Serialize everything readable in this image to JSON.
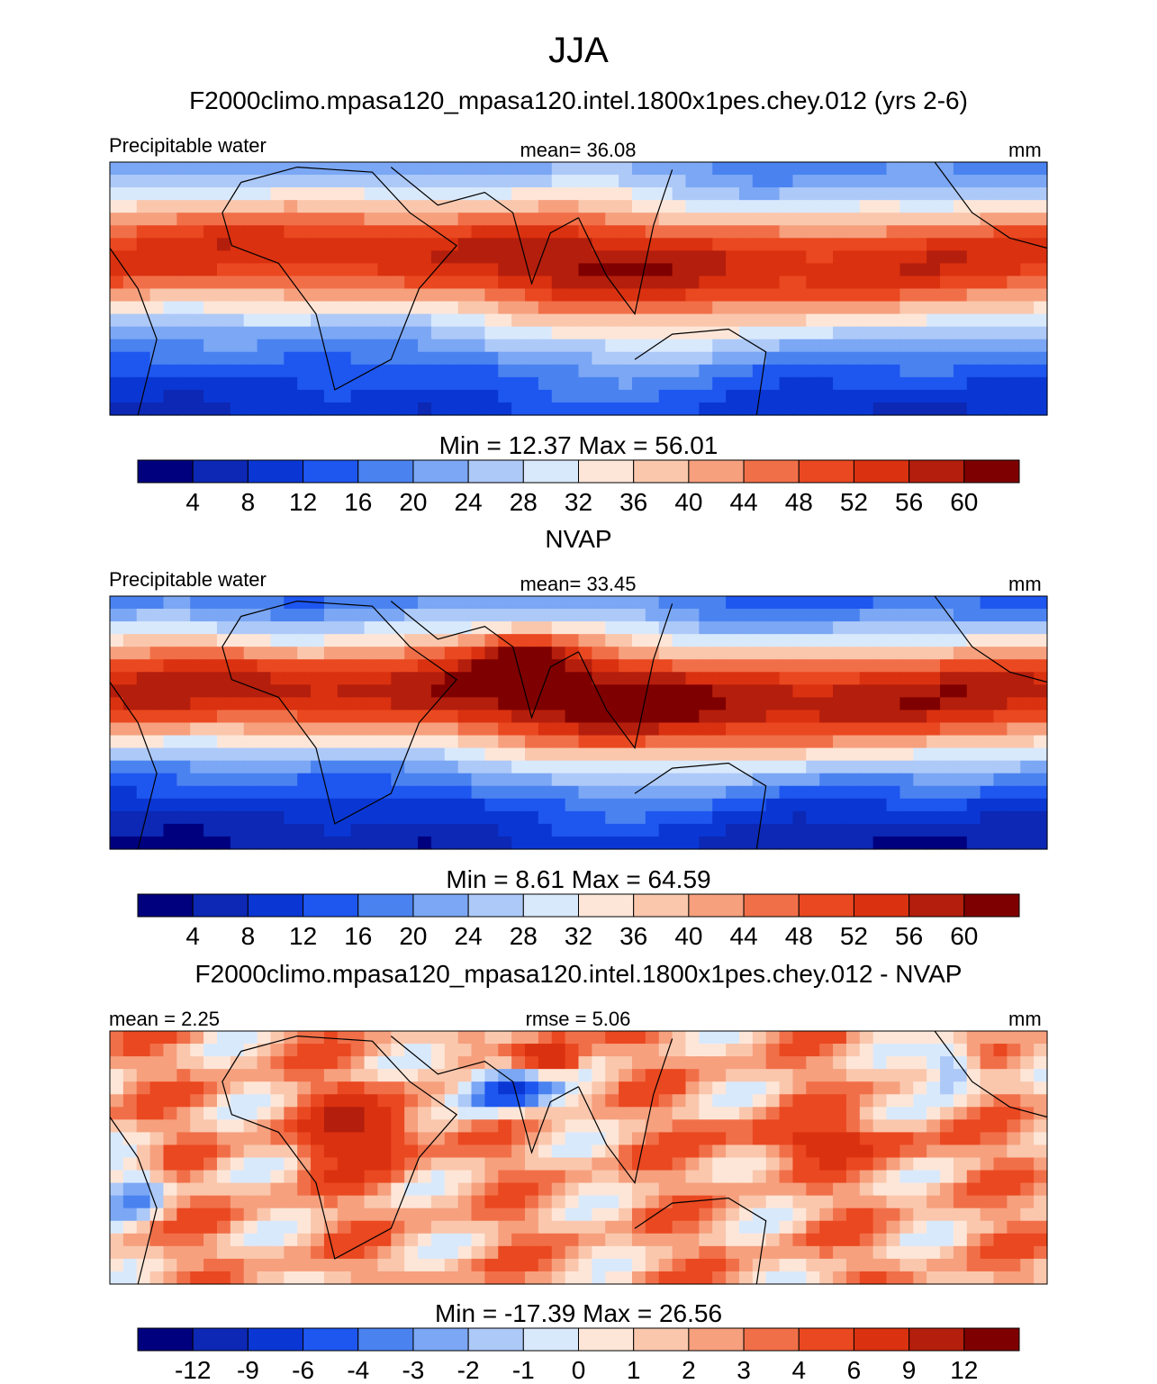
{
  "figure_title": "JJA",
  "colors": {
    "abs_scale": [
      "#00007f",
      "#0c28b4",
      "#0a37d4",
      "#1e56f0",
      "#4a82f0",
      "#7ba7f4",
      "#adc9f8",
      "#d9e9fc",
      "#fde6d8",
      "#fac7ad",
      "#f6a07e",
      "#f16f48",
      "#ea4820",
      "#da3110",
      "#b41e0c",
      "#7f0000"
    ],
    "coast": "#000000"
  },
  "chart_data": [
    {
      "type": "heatmap",
      "panel_title": "F2000climo.mpasa120_mpasa120.intel.1800x1pes.chey.012 (yrs 2-6)",
      "left_label": "Precipitable water",
      "center_label": "mean=  36.08",
      "units": "mm",
      "minmax_label": "Min =  12.37 Max =  56.01",
      "colorbar_ticks": [
        "4",
        "8",
        "12",
        "16",
        "20",
        "24",
        "28",
        "32",
        "36",
        "40",
        "44",
        "48",
        "52",
        "56",
        "60"
      ],
      "field": {
        "equator_max": 54,
        "pole_min": 14,
        "asymmetry": 2
      }
    },
    {
      "type": "heatmap",
      "panel_title": "NVAP",
      "left_label": "Precipitable water",
      "center_label": "mean=  33.45",
      "units": "mm",
      "minmax_label": "Min =   8.61 Max =  64.59",
      "colorbar_ticks": [
        "4",
        "8",
        "12",
        "16",
        "20",
        "24",
        "28",
        "32",
        "36",
        "40",
        "44",
        "48",
        "52",
        "56",
        "60"
      ],
      "field": {
        "equator_max": 58,
        "pole_min": 10,
        "asymmetry": 4
      }
    },
    {
      "type": "heatmap",
      "panel_title": "F2000climo.mpasa120_mpasa120.intel.1800x1pes.chey.012 - NVAP",
      "left_label": "mean =   2.25",
      "center_label": "rmse =   5.06",
      "units": "mm",
      "minmax_label": "Min = -17.39 Max =  26.56",
      "colorbar_ticks": [
        "-12",
        "-9",
        "-6",
        "-4",
        "-3",
        "-2",
        "-1",
        "0",
        "1",
        "2",
        "3",
        "4",
        "6",
        "9",
        "12"
      ],
      "field": {
        "mean": 2.25,
        "rmse": 5.06
      }
    }
  ]
}
